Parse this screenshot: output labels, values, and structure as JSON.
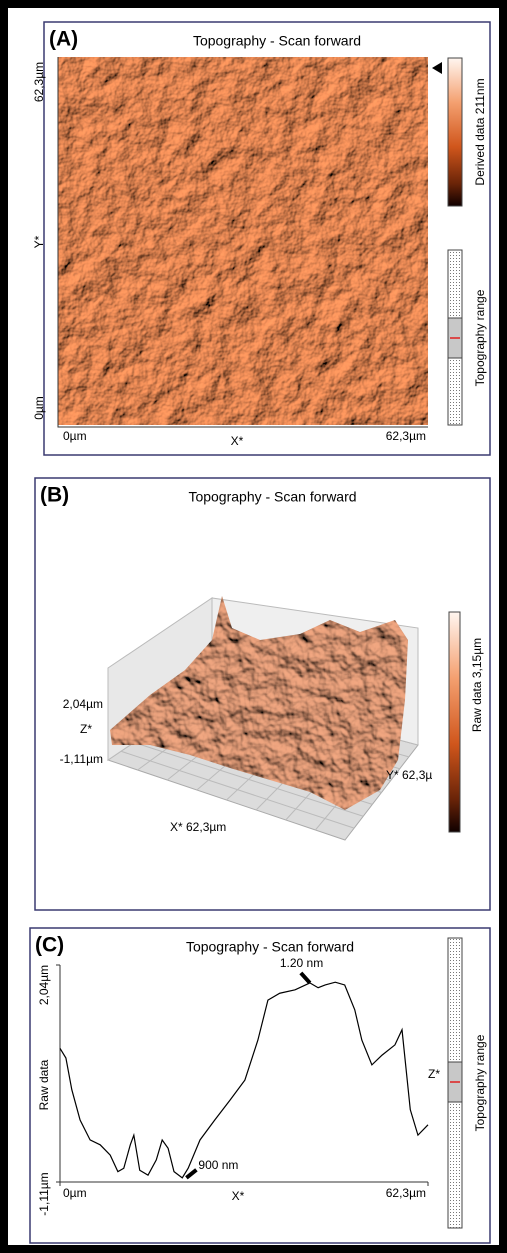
{
  "chart_data": [
    {
      "type": "image",
      "label": "(A)",
      "title": "Topography - Scan forward",
      "x_label": "X*",
      "y_label": "Y*",
      "x_tick_labels": [
        "0µm",
        "62,3µm"
      ],
      "y_tick_labels": [
        "62,3µm",
        "0µm"
      ],
      "colorbar_label": "Derived data 211nm",
      "range_label": "Topography range"
    },
    {
      "type": "surface3d",
      "label": "(B)",
      "title": "Topography - Scan forward",
      "z_label": "Z*",
      "z_tick_labels": [
        "2,04µm",
        "-1,11µm"
      ],
      "x_label": "X* 62,3µm",
      "y_label": "Y* 62,3µ",
      "colorbar_label": "Raw data 3,15µm"
    },
    {
      "type": "line",
      "label": "(C)",
      "title": "Topography - Scan forward",
      "x_label": "X*",
      "y_label": "Raw data",
      "side_label": "Z*",
      "range_label": "Topography range",
      "color": "#000000",
      "x": [
        0,
        1.0,
        2.0,
        3.4,
        5.1,
        6.8,
        8.5,
        9.8,
        10.8,
        11.9,
        12.5,
        13.5,
        14.9,
        16.3,
        17.3,
        18.3,
        19.3,
        20.7,
        21.7,
        23.7,
        26.2,
        28.8,
        31.3,
        33.5,
        35.2,
        37.2,
        39.8,
        42.3,
        43.7,
        44.9,
        46.6,
        48.2,
        49.9,
        51.1,
        52.8,
        54.5,
        56.7,
        57.9,
        59.3,
        60.6,
        62.3
      ],
      "values": [
        0.83,
        0.69,
        0.23,
        -0.21,
        -0.5,
        -0.57,
        -0.72,
        -0.96,
        -0.91,
        -0.57,
        -0.43,
        -0.94,
        -1.01,
        -0.79,
        -0.5,
        -0.62,
        -0.96,
        -1.05,
        -0.91,
        -0.5,
        -0.21,
        0.08,
        0.37,
        0.95,
        1.53,
        1.63,
        1.68,
        1.78,
        1.71,
        1.75,
        1.79,
        1.75,
        1.39,
        0.95,
        0.59,
        0.73,
        0.88,
        1.1,
        -0.06,
        -0.43,
        -0.28
      ],
      "xlim": [
        0,
        62.3
      ],
      "ylim": [
        -1.11,
        2.04
      ],
      "xticks": [
        {
          "value": 0,
          "label": "0µm"
        },
        {
          "value": 62.3,
          "label": "62,3µm"
        }
      ],
      "yticks": [
        {
          "value": 2.04,
          "label": "2,04µm"
        },
        {
          "value": -1.11,
          "label": "-1,11µm"
        }
      ],
      "annotations": [
        {
          "text": "1.20 nm",
          "x": 42.3,
          "y": 1.78
        },
        {
          "text": "900 nm",
          "x": 21.4,
          "y": -1.05
        }
      ]
    }
  ]
}
